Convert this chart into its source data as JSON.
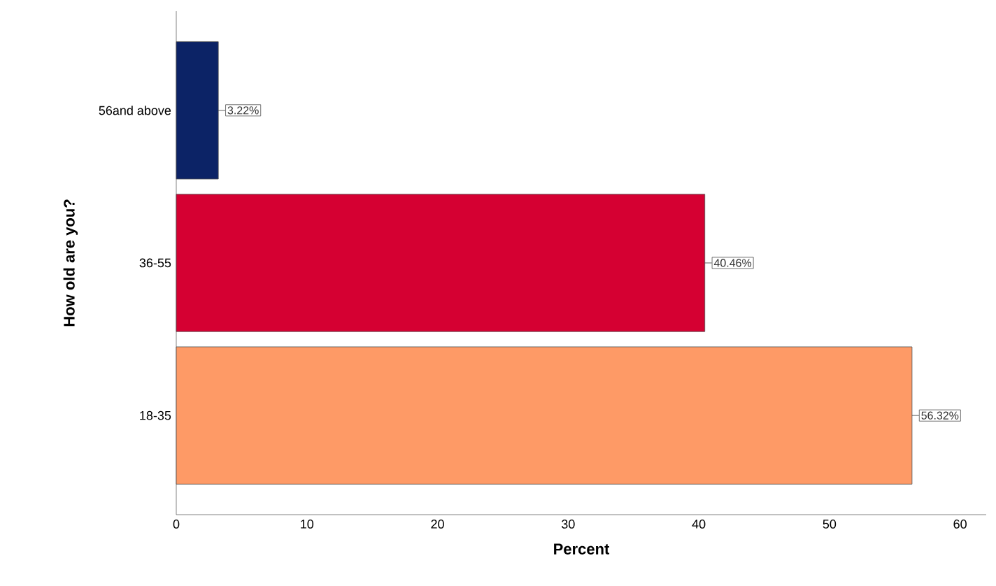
{
  "chart_data": {
    "type": "bar",
    "orientation": "horizontal",
    "ylabel": "How old are you?",
    "xlabel": "Percent",
    "categories": [
      "56and above",
      "36-55",
      "18-35"
    ],
    "values": [
      3.22,
      40.46,
      56.32
    ],
    "colors": [
      "#0c2366",
      "#d50032",
      "#fe9a66"
    ],
    "value_labels": [
      "3.22%",
      "40.46%",
      "56.32%"
    ],
    "xlim": [
      0,
      62
    ],
    "xticks": [
      0,
      10,
      20,
      30,
      40,
      50,
      60
    ],
    "grid": false
  }
}
